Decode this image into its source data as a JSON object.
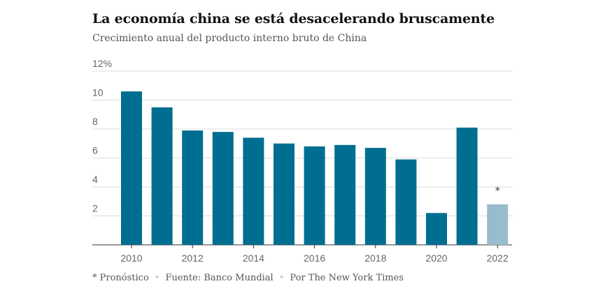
{
  "title": "La economía china se está desacelerando bruscamente",
  "subtitle": "Crecimiento anual del producto interno bruto de China",
  "colors": {
    "actual": "#006e90",
    "forecast": "#99bccc",
    "grid": "#dddddd",
    "axis": "#333333"
  },
  "footer": {
    "note": "* Pronóstico",
    "source": "Fuente: Banco Mundial",
    "credit": "Por The New York Times"
  },
  "chart_data": {
    "type": "bar",
    "categories": [
      "2010",
      "2011",
      "2012",
      "2013",
      "2014",
      "2015",
      "2016",
      "2017",
      "2018",
      "2019",
      "2020",
      "2021",
      "2022"
    ],
    "values": [
      10.6,
      9.5,
      7.9,
      7.8,
      7.4,
      7.0,
      6.8,
      6.9,
      6.7,
      5.9,
      2.2,
      8.1,
      2.8
    ],
    "forecast": [
      false,
      false,
      false,
      false,
      false,
      false,
      false,
      false,
      false,
      false,
      false,
      false,
      true
    ],
    "forecast_marker": "*",
    "x_tick_labels": [
      "2010",
      "2012",
      "2014",
      "2016",
      "2018",
      "2020",
      "2022"
    ],
    "y_ticks": [
      2,
      4,
      6,
      8,
      10,
      12
    ],
    "y_tick_labels": [
      "2",
      "4",
      "6",
      "8",
      "10",
      "12%"
    ],
    "ylim": [
      0,
      12
    ],
    "grid": true
  }
}
